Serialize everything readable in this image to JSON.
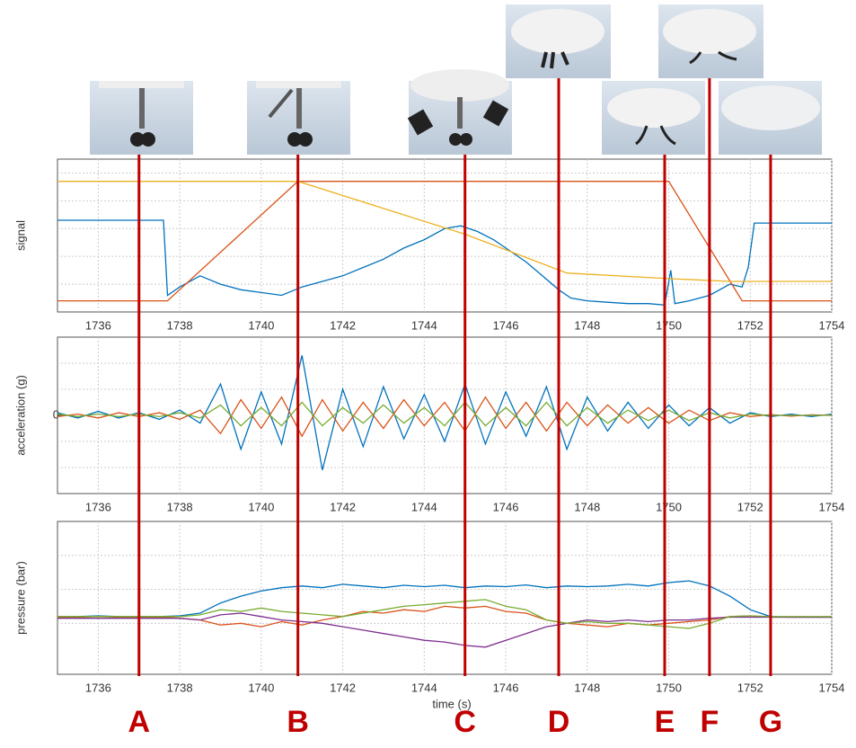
{
  "chart_data": [
    {
      "type": "line",
      "ylabel": "signal",
      "xlim": [
        1735,
        1754
      ],
      "ylim": [
        0,
        5.5
      ],
      "xticks": [
        1736,
        1738,
        1740,
        1742,
        1744,
        1746,
        1748,
        1750,
        1752,
        1754
      ],
      "ygrid": [
        1,
        2,
        3,
        4,
        5
      ],
      "grid": true,
      "series": [
        {
          "color": "#0072bd",
          "x": [
            1735,
            1737.6,
            1737.7,
            1738,
            1738.5,
            1739,
            1739.5,
            1740,
            1740.5,
            1741,
            1741.5,
            1742,
            1742.5,
            1743,
            1743.5,
            1744,
            1744.5,
            1744.9,
            1745.3,
            1745.7,
            1746.1,
            1746.5,
            1746.9,
            1747.3,
            1747.6,
            1748,
            1748.5,
            1749,
            1749.5,
            1749.9,
            1750.05,
            1750.15,
            1750.5,
            1751,
            1751.5,
            1751.8,
            1751.95,
            1752.1,
            1754
          ],
          "values": [
            3.3,
            3.3,
            0.6,
            0.9,
            1.3,
            1.0,
            0.8,
            0.7,
            0.6,
            0.9,
            1.1,
            1.3,
            1.6,
            1.9,
            2.3,
            2.6,
            3.0,
            3.1,
            2.9,
            2.6,
            2.2,
            1.8,
            1.3,
            0.8,
            0.5,
            0.4,
            0.35,
            0.3,
            0.3,
            0.25,
            1.5,
            0.3,
            0.4,
            0.6,
            1.0,
            0.9,
            1.6,
            3.2,
            3.2
          ]
        },
        {
          "color": "#d95319",
          "x": [
            1735,
            1737.7,
            1740.9,
            1750,
            1751.8,
            1754
          ],
          "values": [
            0.4,
            0.4,
            4.7,
            4.7,
            0.4,
            0.4
          ]
        },
        {
          "color": "#edb120",
          "x": [
            1735,
            1740.9,
            1745,
            1747.5,
            1750,
            1751.5,
            1754
          ],
          "values": [
            4.7,
            4.7,
            2.8,
            1.4,
            1.2,
            1.1,
            1.1
          ]
        }
      ]
    },
    {
      "type": "line",
      "ylabel": "acceleration (g)",
      "xlim": [
        1735,
        1754
      ],
      "ylim": [
        -3,
        3
      ],
      "xticks": [
        1736,
        1738,
        1740,
        1742,
        1744,
        1746,
        1748,
        1750,
        1752,
        1754
      ],
      "yticks": [
        0
      ],
      "ygrid": [
        -2,
        -1,
        1,
        2
      ],
      "grid": true,
      "x": [
        1735,
        1735.5,
        1736,
        1736.5,
        1737,
        1737.5,
        1738,
        1738.5,
        1739,
        1739.5,
        1740,
        1740.5,
        1741,
        1741.5,
        1742,
        1742.5,
        1743,
        1743.5,
        1744,
        1744.5,
        1745,
        1745.5,
        1746,
        1746.5,
        1747,
        1747.5,
        1748,
        1748.5,
        1749,
        1749.5,
        1750,
        1750.5,
        1751,
        1751.5,
        1752,
        1752.5,
        1753,
        1753.5,
        1754
      ],
      "series": [
        {
          "color": "#0072bd",
          "values": [
            0.1,
            -0.1,
            0.15,
            -0.1,
            0.1,
            -0.15,
            0.2,
            -0.3,
            1.2,
            -1.3,
            0.9,
            -1.1,
            2.3,
            -2.1,
            1.0,
            -1.2,
            1.1,
            -0.9,
            0.8,
            -1.0,
            1.2,
            -1.1,
            0.9,
            -0.8,
            1.1,
            -1.3,
            0.7,
            -0.6,
            0.5,
            -0.5,
            0.4,
            -0.4,
            0.3,
            -0.3,
            0.1,
            -0.05,
            0.05,
            -0.05,
            0.05
          ]
        },
        {
          "color": "#d95319",
          "values": [
            -0.05,
            0.05,
            -0.1,
            0.1,
            -0.05,
            0.1,
            -0.15,
            0.2,
            -0.7,
            0.6,
            -0.5,
            0.7,
            -0.8,
            0.6,
            -0.6,
            0.5,
            -0.5,
            0.6,
            -0.4,
            0.5,
            -0.6,
            0.7,
            -0.5,
            0.5,
            -0.6,
            0.5,
            -0.4,
            0.4,
            -0.3,
            0.3,
            -0.3,
            0.2,
            -0.2,
            0.1,
            -0.05,
            0.03,
            -0.03,
            0.02,
            0
          ]
        },
        {
          "color": "#77ac30",
          "values": [
            0.05,
            -0.05,
            0.05,
            -0.05,
            0.05,
            -0.05,
            0.1,
            -0.1,
            0.4,
            -0.4,
            0.3,
            -0.4,
            0.5,
            -0.4,
            0.3,
            -0.3,
            0.4,
            -0.3,
            0.3,
            -0.4,
            0.5,
            -0.4,
            0.3,
            -0.4,
            0.5,
            -0.4,
            0.3,
            -0.3,
            0.2,
            -0.2,
            0.2,
            -0.2,
            0.1,
            -0.1,
            0.05,
            0,
            0,
            0,
            0
          ]
        }
      ]
    },
    {
      "type": "line",
      "ylabel": "pressure (bar)",
      "xlabel": "time (s)",
      "xlim": [
        1735,
        1754
      ],
      "ylim": [
        0,
        4.5
      ],
      "xticks": [
        1736,
        1738,
        1740,
        1742,
        1744,
        1746,
        1748,
        1750,
        1752,
        1754
      ],
      "ygrid": [
        1.5,
        2.5,
        3.5
      ],
      "grid": true,
      "x": [
        1735,
        1735.5,
        1736,
        1736.5,
        1737,
        1737.5,
        1738,
        1738.5,
        1739,
        1739.5,
        1740,
        1740.5,
        1741,
        1741.5,
        1742,
        1742.5,
        1743,
        1743.5,
        1744,
        1744.5,
        1745,
        1745.5,
        1746,
        1746.5,
        1747,
        1747.5,
        1748,
        1748.5,
        1749,
        1749.5,
        1750,
        1750.5,
        1751,
        1751.5,
        1752,
        1752.5,
        1753,
        1753.5,
        1754
      ],
      "series": [
        {
          "color": "#0072bd",
          "values": [
            1.7,
            1.7,
            1.72,
            1.7,
            1.7,
            1.7,
            1.72,
            1.8,
            2.1,
            2.3,
            2.45,
            2.55,
            2.6,
            2.55,
            2.65,
            2.6,
            2.55,
            2.62,
            2.58,
            2.62,
            2.55,
            2.6,
            2.58,
            2.63,
            2.55,
            2.6,
            2.58,
            2.6,
            2.65,
            2.6,
            2.7,
            2.75,
            2.6,
            2.3,
            1.9,
            1.7,
            1.68,
            1.68,
            1.68
          ]
        },
        {
          "color": "#d95319",
          "values": [
            1.68,
            1.68,
            1.7,
            1.68,
            1.68,
            1.68,
            1.65,
            1.6,
            1.45,
            1.5,
            1.4,
            1.55,
            1.45,
            1.6,
            1.7,
            1.85,
            1.8,
            1.9,
            1.85,
            2.0,
            1.95,
            2.0,
            1.85,
            1.8,
            1.6,
            1.5,
            1.45,
            1.4,
            1.5,
            1.45,
            1.5,
            1.55,
            1.6,
            1.7,
            1.72,
            1.68,
            1.68,
            1.68,
            1.68
          ]
        },
        {
          "color": "#7e2f8e",
          "values": [
            1.65,
            1.65,
            1.65,
            1.65,
            1.65,
            1.65,
            1.65,
            1.6,
            1.75,
            1.8,
            1.7,
            1.6,
            1.55,
            1.5,
            1.4,
            1.3,
            1.2,
            1.1,
            1.0,
            0.95,
            0.85,
            0.8,
            1.0,
            1.2,
            1.4,
            1.5,
            1.6,
            1.55,
            1.6,
            1.55,
            1.6,
            1.6,
            1.65,
            1.68,
            1.68,
            1.68,
            1.68,
            1.68,
            1.68
          ]
        },
        {
          "color": "#77ac30",
          "values": [
            1.7,
            1.7,
            1.7,
            1.7,
            1.7,
            1.7,
            1.7,
            1.75,
            1.9,
            1.85,
            1.95,
            1.85,
            1.8,
            1.75,
            1.7,
            1.8,
            1.9,
            2.0,
            2.05,
            2.1,
            2.15,
            2.2,
            2.0,
            1.9,
            1.6,
            1.5,
            1.55,
            1.5,
            1.5,
            1.45,
            1.4,
            1.35,
            1.5,
            1.7,
            1.72,
            1.7,
            1.7,
            1.7,
            1.7
          ]
        }
      ]
    }
  ],
  "markers": {
    "color": "#c00000",
    "items": [
      {
        "label": "A",
        "x": 1737.0
      },
      {
        "label": "B",
        "x": 1740.9
      },
      {
        "label": "C",
        "x": 1745.0
      },
      {
        "label": "D",
        "x": 1747.3
      },
      {
        "label": "E",
        "x": 1749.9
      },
      {
        "label": "F",
        "x": 1751.0
      },
      {
        "label": "G",
        "x": 1752.5
      }
    ]
  }
}
